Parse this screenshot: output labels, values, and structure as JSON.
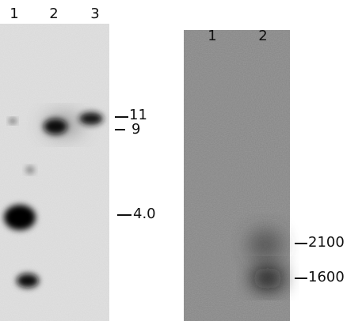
{
  "panels": [
    {
      "lanes": [
        "1",
        "2",
        "3"
      ],
      "markers": [
        "11",
        "9",
        "4.0"
      ]
    },
    {
      "lanes": [
        "1",
        "2"
      ],
      "markers": [
        "2100",
        "1600"
      ]
    }
  ]
}
